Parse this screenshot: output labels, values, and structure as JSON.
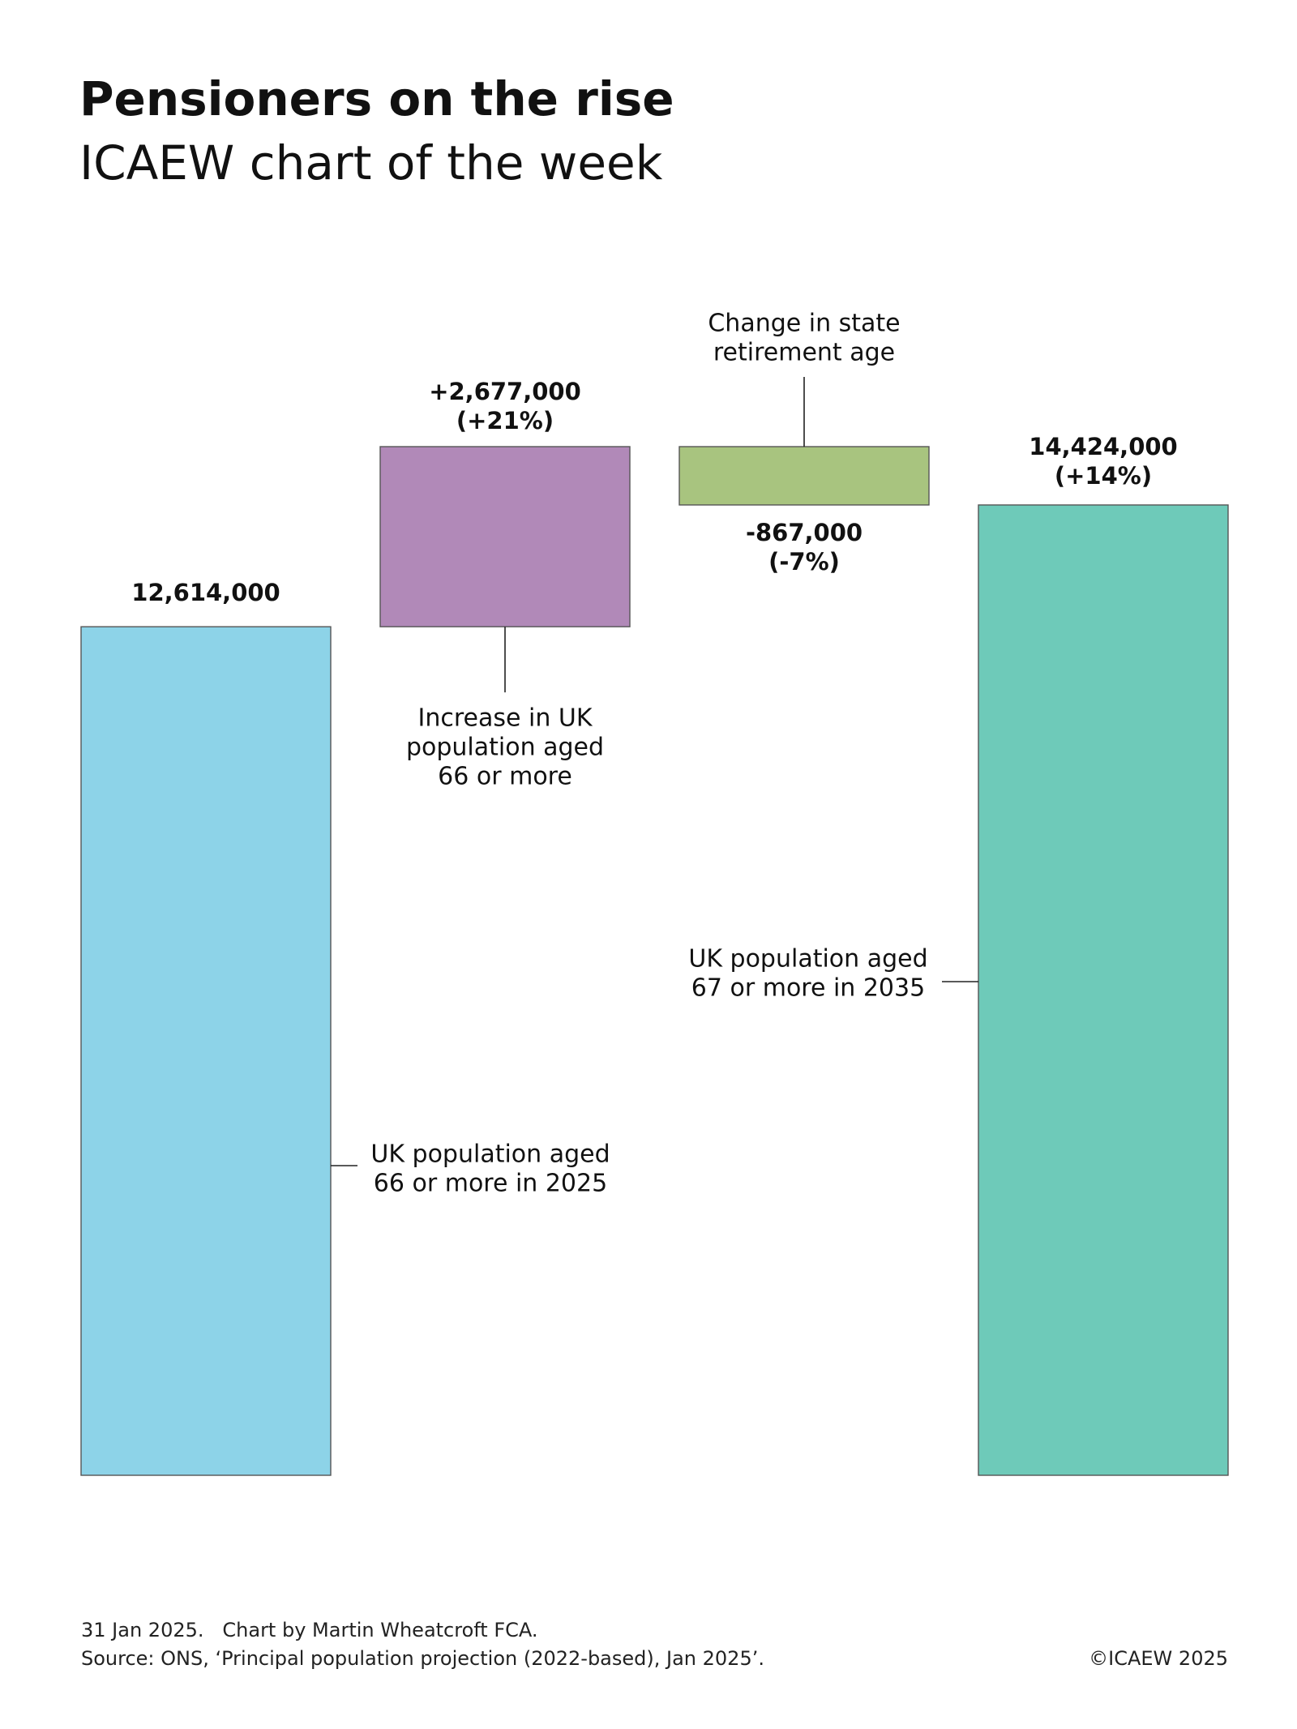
{
  "chart_data": {
    "type": "waterfall",
    "title": "Pensioners on the rise",
    "subtitle": "ICAEW chart of the week",
    "categories": [
      [
        "UK population aged",
        "66 or more in 2025"
      ],
      [
        "Increase in UK",
        "population aged",
        "66 or more"
      ],
      [
        "Change in state",
        "retirement age"
      ],
      [
        "UK population aged",
        "67 or more in 2035"
      ]
    ],
    "values": [
      12614000,
      2677000,
      -867000,
      14424000
    ],
    "value_labels": [
      "12,614,000",
      "+2,677,000",
      "-867,000",
      "14,424,000"
    ],
    "change_labels": [
      null,
      "(+21%)",
      "(-7%)",
      "(+14%)"
    ],
    "colors": [
      "#8dd3e8",
      "#b189b8",
      "#a8c47f",
      "#6ecab9"
    ],
    "footer": {
      "date_credit": "31 Jan 2025.   Chart by Martin Wheatcroft FCA.",
      "source": "Source: ONS, ‘Principal population projection (2022-based), Jan 2025’.",
      "copyright": "©ICAEW 2025"
    }
  }
}
